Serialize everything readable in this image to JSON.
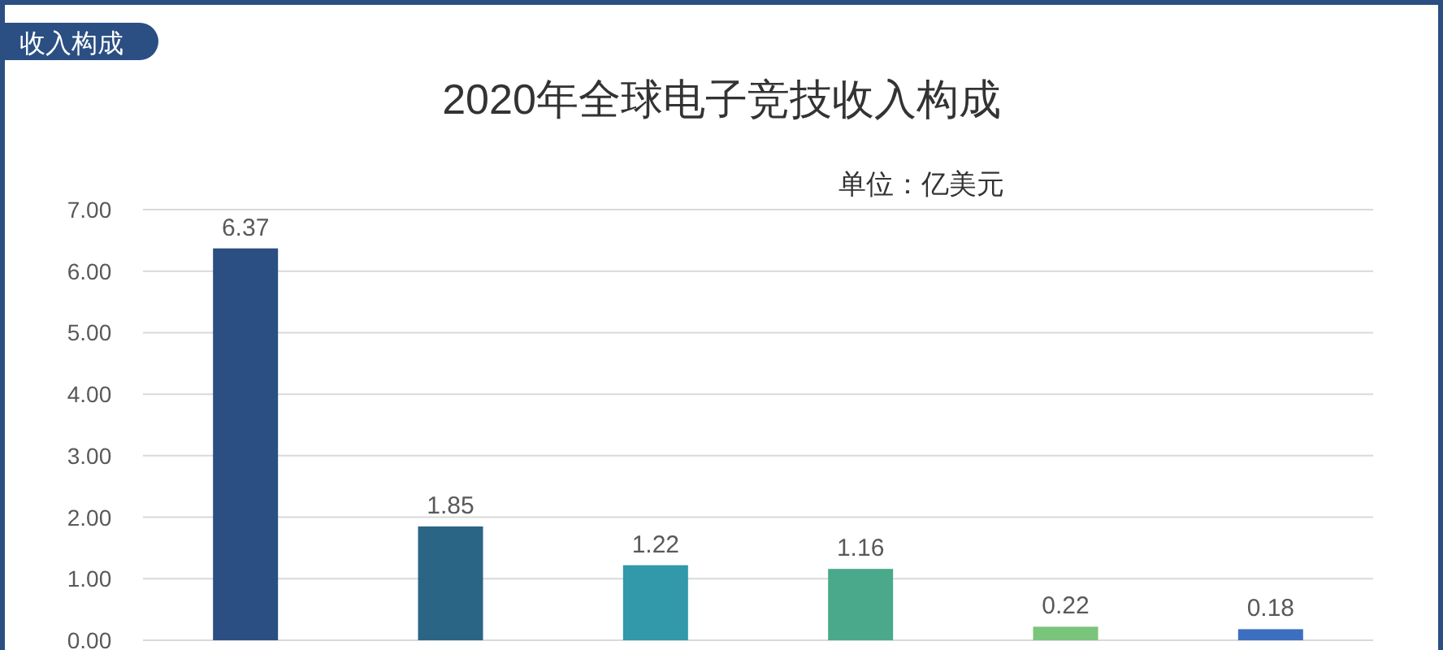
{
  "chart_data": {
    "type": "bar",
    "title": "2020年全球电子竞技收入构成",
    "subtitle": "单位：亿美元",
    "annotations": [
      "收入构成"
    ],
    "categories": [
      null,
      null,
      null,
      null,
      null,
      null
    ],
    "values": [
      6.37,
      1.85,
      1.22,
      1.16,
      0.22,
      0.18
    ],
    "colors": [
      "#2b4f83",
      "#2a6585",
      "#3199a9",
      "#4aa98b",
      "#7ac47c",
      "#3d6fc1"
    ],
    "ylim": [
      0,
      7
    ],
    "yticks": [
      {
        "value": 0,
        "label": "0.00"
      },
      {
        "value": 1,
        "label": "1.00"
      },
      {
        "value": 2,
        "label": "2.00"
      },
      {
        "value": 3,
        "label": "3.00"
      },
      {
        "value": 4,
        "label": "4.00"
      },
      {
        "value": 5,
        "label": "5.00"
      },
      {
        "value": 6,
        "label": "6.00"
      },
      {
        "value": 7,
        "label": "7.00"
      }
    ],
    "grid": "y",
    "data_labels": true
  }
}
